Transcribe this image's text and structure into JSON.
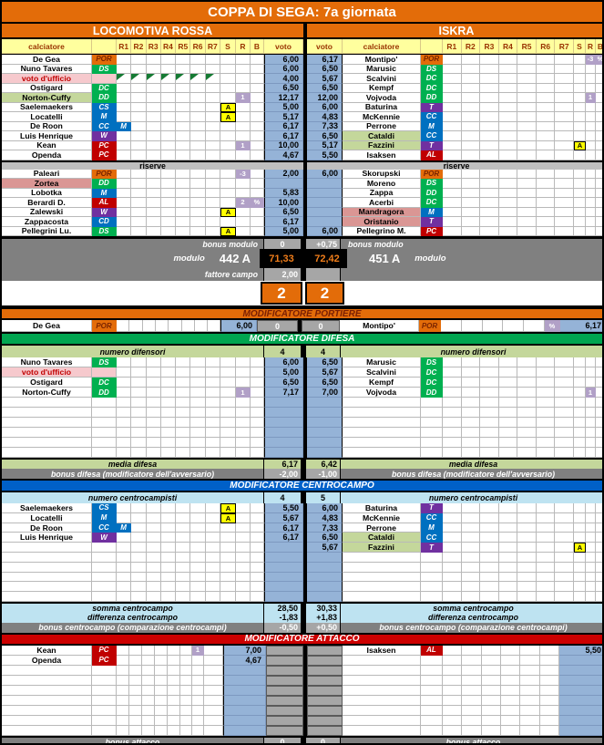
{
  "title": "COPPA DI SEGA: 7a giornata",
  "teams": {
    "left": "LOCOMOTIVA ROSSA",
    "right": "ISKRA"
  },
  "columns": {
    "player": "calciatore",
    "rounds": [
      "R1",
      "R2",
      "R3",
      "R4",
      "R5",
      "R6",
      "R7"
    ],
    "s": "S",
    "r": "R",
    "b": "B",
    "voto": "voto"
  },
  "colors": {
    "accent_orange": "#e36c09",
    "header_yellow": "#ffff9e",
    "header_text": "#993300",
    "voto_blue": "#95b3d7",
    "role_goalkeeper": "#e36c09",
    "role_defender": "#00b050",
    "role_midfielder": "#0070c0",
    "role_winger_trequartista": "#7030a0",
    "role_forward": "#c00000",
    "highlight_green": "#c4d79b",
    "highlight_salmon": "#da9694",
    "highlight_pink": "#f6c9cd",
    "sub_purple": "#b1a0c7",
    "card_yellow": "#ffff00",
    "grey_label": "#808080",
    "grey_value": "#a6a6a6",
    "light_blue_row": "#bee3f1",
    "banner_green": "#00a550",
    "banner_blue": "#0060c8",
    "banner_red": "#cc0000",
    "score_box_bg": "#000000",
    "score_text": "#ef7d1a"
  },
  "lineup": {
    "left": [
      {
        "name": "De Gea",
        "role": "POR",
        "voto": "6,00"
      },
      {
        "name": "Nuno Tavares",
        "role": "DS",
        "voto": "6,00"
      },
      {
        "name": "voto d'ufficio",
        "hl": "pink",
        "flags": true,
        "voto": "4,00"
      },
      {
        "name": "Ostigard",
        "role": "DC",
        "voto": "6,50"
      },
      {
        "name": "Norton-Cuffy",
        "role": "DD",
        "hl": "green",
        "r": "1",
        "voto": "12,17"
      },
      {
        "name": "Saelemaekers",
        "role": "CS",
        "s": "A",
        "voto": "5,00"
      },
      {
        "name": "Locatelli",
        "role": "M",
        "s": "A",
        "voto": "5,17"
      },
      {
        "name": "De Roon",
        "role": "CC",
        "role2": "M",
        "voto": "6,17"
      },
      {
        "name": "Luis Henrique",
        "role": "W",
        "voto": "6,17"
      },
      {
        "name": "Kean",
        "role": "PC",
        "r": "1",
        "voto": "10,00"
      },
      {
        "name": "Openda",
        "role": "PC",
        "voto": "4,67"
      }
    ],
    "right": [
      {
        "name": "Montipo'",
        "role": "POR",
        "r": "-3",
        "b": "%",
        "voto": "6,17"
      },
      {
        "name": "Marusic",
        "role": "DS",
        "voto": "6,50"
      },
      {
        "name": "Scalvini",
        "role": "DC",
        "voto": "5,67"
      },
      {
        "name": "Kempf",
        "role": "DC",
        "voto": "6,50"
      },
      {
        "name": "Vojvoda",
        "role": "DD",
        "r": "1",
        "voto": "12,00"
      },
      {
        "name": "Baturina",
        "role": "T",
        "voto": "6,00"
      },
      {
        "name": "McKennie",
        "role": "CC",
        "voto": "4,83"
      },
      {
        "name": "Perrone",
        "role": "M",
        "voto": "7,33"
      },
      {
        "name": "Cataldi",
        "role": "CC",
        "hl": "green",
        "voto": "6,50"
      },
      {
        "name": "Fazzini",
        "role": "T",
        "hl": "green",
        "s": "A",
        "voto": "5,17"
      },
      {
        "name": "Isaksen",
        "role": "AL",
        "voto": "5,50"
      }
    ]
  },
  "reserves": {
    "label": "riserve",
    "left": [
      {
        "name": "Paleari",
        "role": "POR",
        "r": "-3",
        "voto": "2,00"
      },
      {
        "name": "Zortea",
        "role": "DD",
        "hl": "salmon",
        "voto": ""
      },
      {
        "name": "Lobotka",
        "role": "M",
        "voto": "5,83"
      },
      {
        "name": "Berardi D.",
        "role": "AL",
        "r": "2",
        "b": "%",
        "voto": "10,00"
      },
      {
        "name": "Zalewski",
        "role": "W",
        "s": "A",
        "voto": "6,50"
      },
      {
        "name": "Zappacosta",
        "role": "CD",
        "voto": "6,17"
      },
      {
        "name": "Pellegrini Lu.",
        "role": "DS",
        "s": "A",
        "voto": "5,00"
      }
    ],
    "right": [
      {
        "name": "Skorupski",
        "role": "POR",
        "voto": "6,00"
      },
      {
        "name": "Moreno",
        "role": "DS",
        "voto": ""
      },
      {
        "name": "Zappa",
        "role": "DD",
        "voto": ""
      },
      {
        "name": "Acerbi",
        "role": "DC",
        "voto": ""
      },
      {
        "name": "Mandragora",
        "role": "M",
        "hl": "salmon",
        "voto": ""
      },
      {
        "name": "Oristanio",
        "role": "T",
        "hl": "salmon",
        "voto": ""
      },
      {
        "name": "Pellegrino M.",
        "role": "PC",
        "voto": "6,00"
      }
    ]
  },
  "summary": {
    "bonus_modulo_label": "bonus modulo",
    "bonus_modulo_left": "0",
    "bonus_modulo_right": "+0,75",
    "modulo_label": "modulo",
    "modulo_left": "442 A",
    "modulo_right": "451 A",
    "total_left": "71,33",
    "total_right": "72,42",
    "fattore_label": "fattore campo",
    "fattore_value": "2,00",
    "goals_left": "2",
    "goals_right": "2"
  },
  "portiere": {
    "banner": "MODIFICATORE PORTIERE",
    "row": {
      "left": {
        "name": "De Gea",
        "role": "POR"
      },
      "voto_left": "6,00",
      "bonus_left": "0",
      "bonus_right": "0",
      "right": {
        "name": "Montipo'",
        "role": "POR",
        "b": "%"
      },
      "voto_right": "6,17"
    }
  },
  "difesa": {
    "banner": "MODIFICATORE DIFESA",
    "count_label": "numero difensori",
    "count_left": "4",
    "count_right": "4",
    "rows": [
      {
        "left": {
          "name": "Nuno Tavares",
          "role": "DS"
        },
        "voto_left": "6,00",
        "voto_right": "6,50",
        "right": {
          "name": "Marusic",
          "role": "DS"
        }
      },
      {
        "left": {
          "name": "voto d'ufficio",
          "hl": "pink"
        },
        "voto_left": "5,00",
        "voto_right": "5,67",
        "right": {
          "name": "Scalvini",
          "role": "DC"
        }
      },
      {
        "left": {
          "name": "Ostigard",
          "role": "DC"
        },
        "voto_left": "6,50",
        "voto_right": "6,50",
        "right": {
          "name": "Kempf",
          "role": "DC"
        }
      },
      {
        "left": {
          "name": "Norton-Cuffy",
          "role": "DD",
          "r": "1"
        },
        "voto_left": "7,17",
        "voto_right": "7,00",
        "right": {
          "name": "Vojvoda",
          "role": "DD",
          "r": "1"
        }
      }
    ],
    "empty_rows": 6,
    "media_label": "media difesa",
    "media_left": "6,17",
    "media_right": "6,42",
    "bonus_label": "bonus difesa (modificatore dell'avversario)",
    "bonus_left": "-2,00",
    "bonus_right": "-1,00"
  },
  "centrocampo": {
    "banner": "MODIFICATORE CENTROCAMPO",
    "count_label": "numero centrocampisti",
    "count_left": "4",
    "count_right": "5",
    "rows": [
      {
        "left": {
          "name": "Saelemaekers",
          "role": "CS",
          "s": "A"
        },
        "voto_left": "5,50",
        "voto_right": "6,00",
        "right": {
          "name": "Baturina",
          "role": "T"
        }
      },
      {
        "left": {
          "name": "Locatelli",
          "role": "M",
          "s": "A"
        },
        "voto_left": "5,67",
        "voto_right": "4,83",
        "right": {
          "name": "McKennie",
          "role": "CC"
        }
      },
      {
        "left": {
          "name": "De Roon",
          "role": "CC",
          "role2": "M"
        },
        "voto_left": "6,17",
        "voto_right": "7,33",
        "right": {
          "name": "Perrone",
          "role": "M"
        }
      },
      {
        "left": {
          "name": "Luis Henrique",
          "role": "W"
        },
        "voto_left": "6,17",
        "voto_right": "6,50",
        "right": {
          "name": "Cataldi",
          "role": "CC",
          "hl": "green"
        }
      },
      {
        "left": {},
        "voto_left": "",
        "voto_right": "5,67",
        "right": {
          "name": "Fazzini",
          "role": "T",
          "hl": "green",
          "s": "A"
        }
      }
    ],
    "empty_rows": 5,
    "somma_label": "somma centrocampo",
    "somma_left": "28,50",
    "somma_right": "30,33",
    "differenza_label": "differenza centrocampo",
    "differenza_left": "-1,83",
    "differenza_right": "+1,83",
    "bonus_label": "bonus centrocampo (comparazione centrocampi)",
    "bonus_left": "-0,50",
    "bonus_right": "+0,50"
  },
  "attacco": {
    "banner": "MODIFICATORE ATTACCO",
    "rows": [
      {
        "left": {
          "name": "Kean",
          "role": "PC",
          "r": "1"
        },
        "voto_left": "7,00",
        "right": {
          "name": "Isaksen",
          "role": "AL"
        },
        "voto_right": "5,50"
      },
      {
        "left": {
          "name": "Openda",
          "role": "PC"
        },
        "voto_left": "4,67",
        "right": {},
        "voto_right": ""
      }
    ],
    "empty_rows": 7,
    "bonus_label": "bonus attacco",
    "bonus_left": "0",
    "bonus_right": "0"
  }
}
